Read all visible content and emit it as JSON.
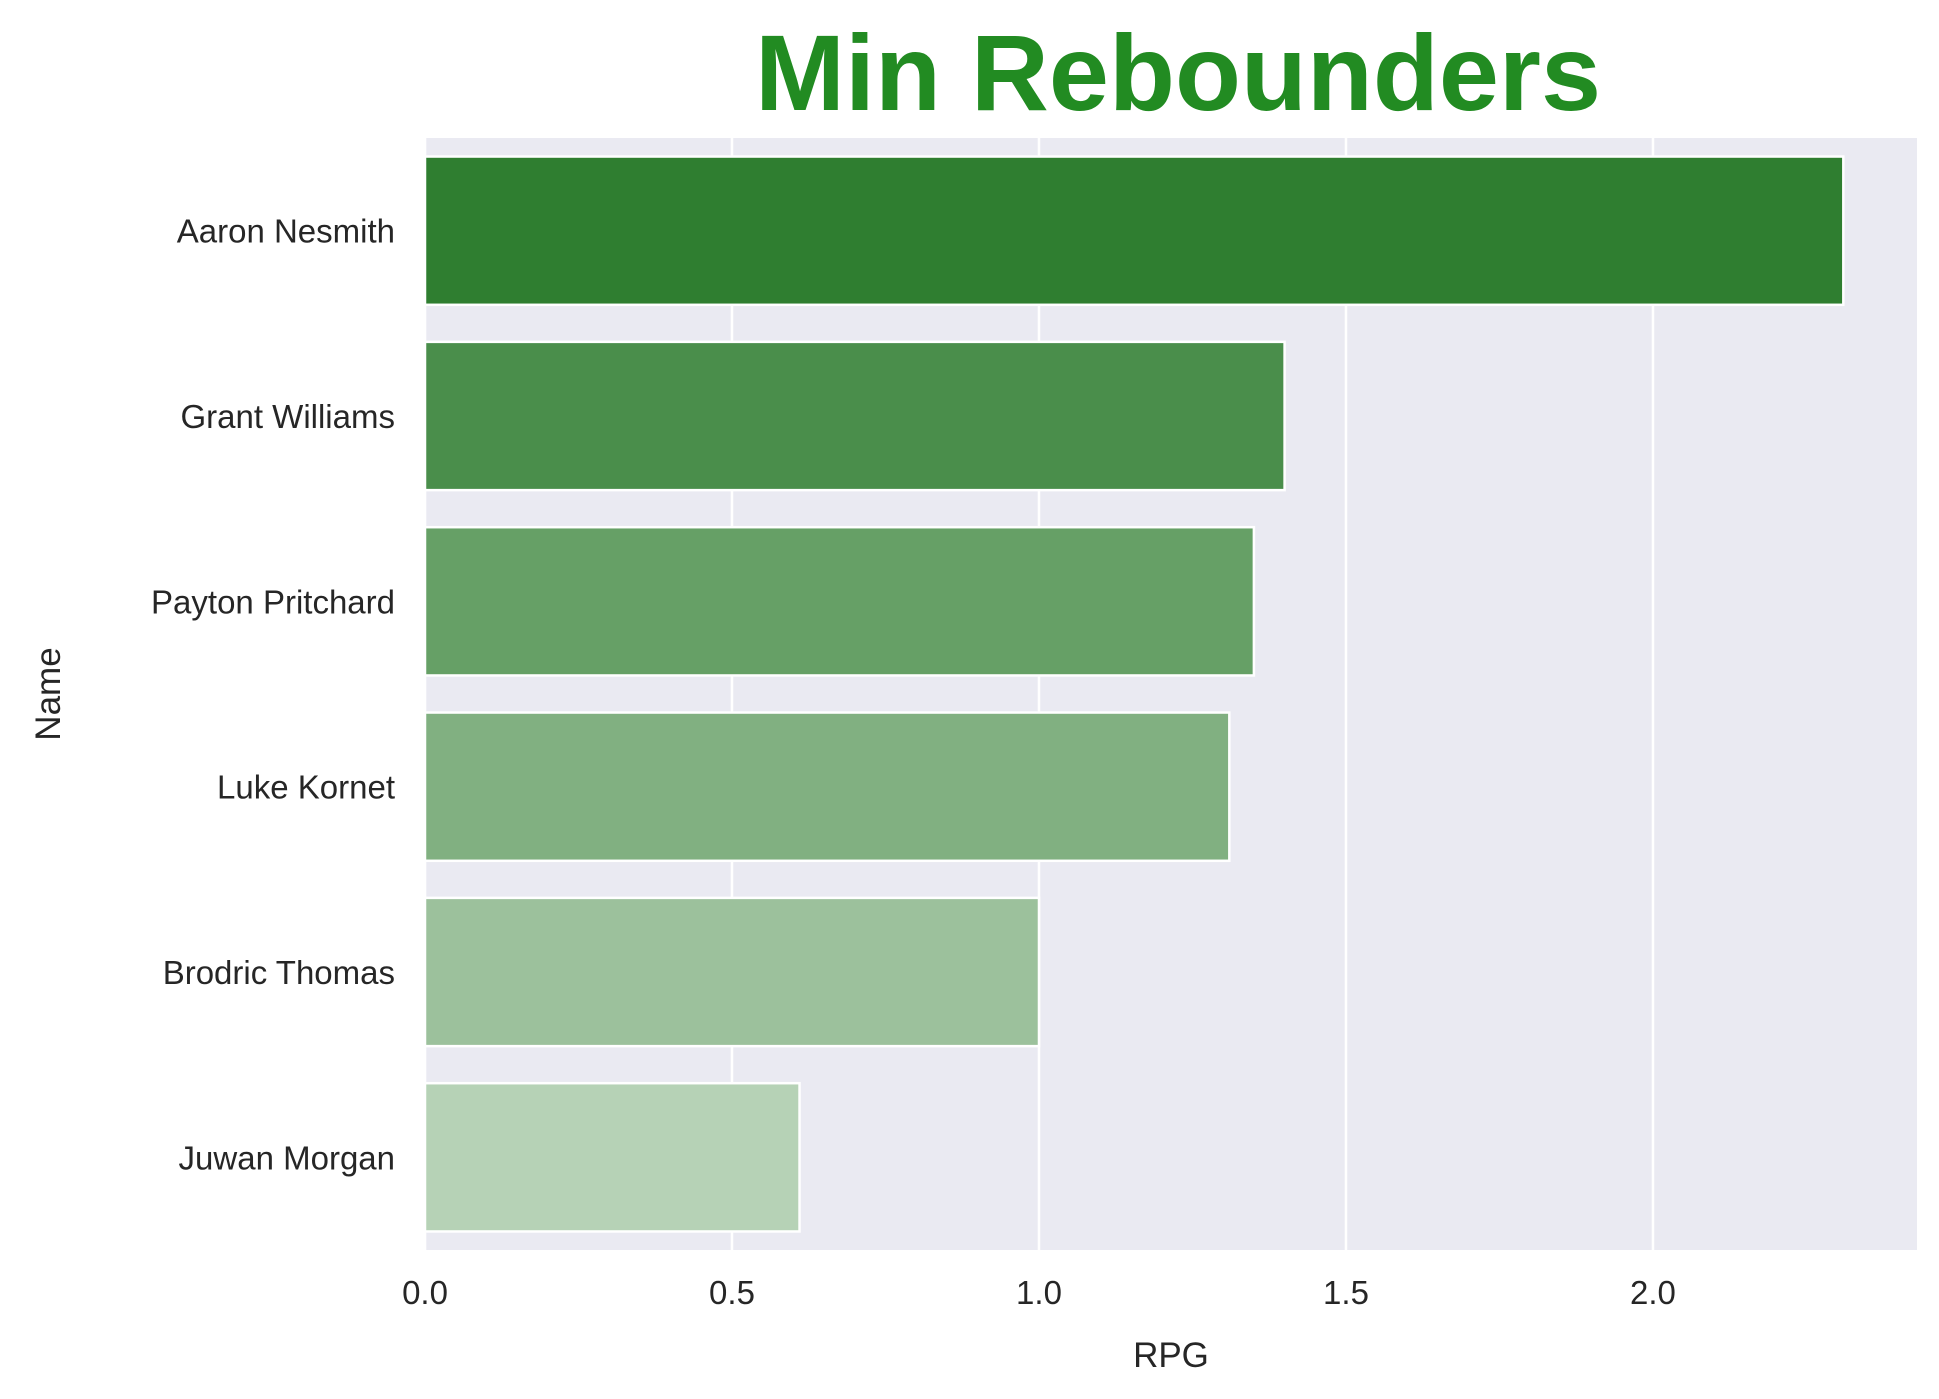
{
  "chart_data": {
    "type": "bar",
    "orientation": "horizontal",
    "title": "Min Rebounders",
    "xlabel": "RPG",
    "ylabel": "Name",
    "categories": [
      "Aaron Nesmith",
      "Grant Williams",
      "Payton Pritchard",
      "Luke Kornet",
      "Brodric Thomas",
      "Juwan Morgan"
    ],
    "values": [
      2.31,
      1.4,
      1.35,
      1.31,
      1.0,
      0.61
    ],
    "xlim": [
      0,
      2.43
    ],
    "xticks": [
      "0.0",
      "0.5",
      "1.0",
      "1.5",
      "2.0"
    ],
    "grid": true,
    "colors": {
      "title": "#228b22",
      "background": "#eaeaf2",
      "grid": "#ffffff",
      "bars": [
        "#2f7e30",
        "#4a8e4b",
        "#66a066",
        "#81b081",
        "#9cc19c",
        "#b6d2b6"
      ]
    }
  }
}
